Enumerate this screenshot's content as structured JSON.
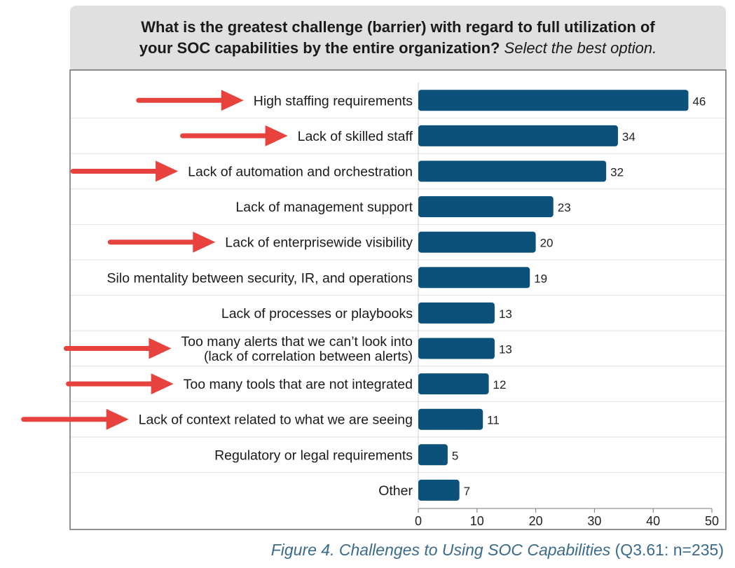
{
  "header": {
    "question_bold": "What is the greatest challenge (barrier) with regard to full utilization of",
    "question_bold_2": "your SOC capabilities by the entire organization?",
    "question_italic": "Select the best option."
  },
  "caption": {
    "figure_label": "Figure 4. Challenges to Using SOC Capabilities",
    "sample": "(Q3.61: n=235)"
  },
  "colors": {
    "bar": "#0b5179",
    "arrow": "#e8423f",
    "header_bg": "#e0e0e0",
    "caption": "#3a6a8c"
  },
  "chart_data": {
    "type": "bar",
    "orientation": "horizontal",
    "categories": [
      [
        "High staffing requirements"
      ],
      [
        "Lack of skilled staff"
      ],
      [
        "Lack of automation and orchestration"
      ],
      [
        "Lack of management support"
      ],
      [
        "Lack of enterprisewide visibility"
      ],
      [
        "Silo mentality between security, IR, and operations"
      ],
      [
        "Lack of processes or playbooks"
      ],
      [
        "Too many alerts that we can’t look into",
        "(lack of correlation between alerts)"
      ],
      [
        "Too many tools that are not integrated"
      ],
      [
        "Lack of context related to what we are seeing"
      ],
      [
        "Regulatory or legal requirements"
      ],
      [
        "Other"
      ]
    ],
    "values": [
      46,
      34,
      32,
      23,
      20,
      19,
      13,
      13,
      12,
      11,
      5,
      7
    ],
    "data_labels": [
      "46",
      "34",
      "32",
      "23",
      "20",
      "19",
      "13",
      "13",
      "12",
      "11",
      "5",
      "7"
    ],
    "highlighted": [
      true,
      true,
      true,
      false,
      true,
      false,
      false,
      true,
      true,
      true,
      false,
      false
    ],
    "xlim": [
      0,
      50
    ],
    "xticks": [
      "0",
      "10",
      "20",
      "30",
      "40",
      "50"
    ],
    "grid": "horizontal row separators",
    "annotation": "red arrows point at highlighted categories"
  }
}
